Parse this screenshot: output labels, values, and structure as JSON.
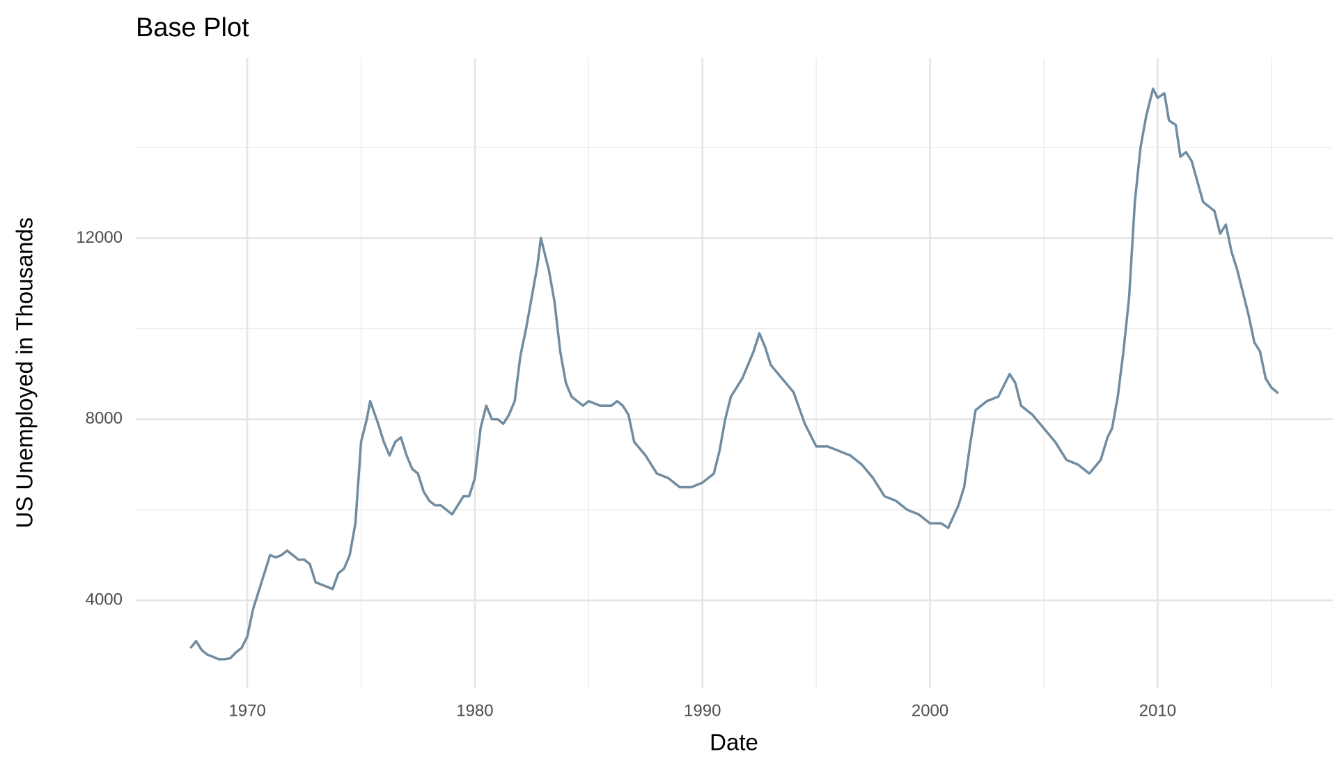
{
  "chart_data": {
    "type": "line",
    "title": "Base Plot",
    "x_label": "Date",
    "y_label": "US Unemployed in Thousands",
    "x": [
      1967.5,
      1967.75,
      1968,
      1968.25,
      1968.5,
      1968.75,
      1969,
      1969.25,
      1969.5,
      1969.75,
      1970,
      1970.25,
      1970.5,
      1970.75,
      1971,
      1971.25,
      1971.5,
      1971.75,
      1972,
      1972.25,
      1972.5,
      1972.75,
      1973,
      1973.25,
      1973.5,
      1973.75,
      1974,
      1974.25,
      1974.5,
      1974.75,
      1975,
      1975.25,
      1975.4,
      1975.75,
      1976,
      1976.25,
      1976.5,
      1976.75,
      1977,
      1977.25,
      1977.5,
      1977.75,
      1978,
      1978.25,
      1978.5,
      1978.75,
      1979,
      1979.25,
      1979.5,
      1979.75,
      1980,
      1980.25,
      1980.5,
      1980.75,
      1981,
      1981.25,
      1981.5,
      1981.75,
      1982,
      1982.25,
      1982.5,
      1982.75,
      1982.9,
      1983.25,
      1983.5,
      1983.75,
      1984,
      1984.25,
      1984.5,
      1984.75,
      1985,
      1985.5,
      1986,
      1986.25,
      1986.5,
      1986.75,
      1987,
      1987.5,
      1988,
      1988.5,
      1989,
      1989.5,
      1990,
      1990.5,
      1990.75,
      1991,
      1991.25,
      1991.5,
      1991.75,
      1992,
      1992.25,
      1992.5,
      1992.75,
      1993,
      1993.5,
      1994,
      1994.5,
      1995,
      1995.5,
      1996,
      1996.5,
      1997,
      1997.5,
      1998,
      1998.5,
      1999,
      1999.5,
      2000,
      2000.5,
      2000.8,
      2001.25,
      2001.5,
      2001.75,
      2002,
      2002.5,
      2003,
      2003.5,
      2003.75,
      2004,
      2004.5,
      2005,
      2005.5,
      2006,
      2006.5,
      2007,
      2007.5,
      2007.8,
      2008,
      2008.25,
      2008.5,
      2008.75,
      2009,
      2009.25,
      2009.5,
      2009.8,
      2010,
      2010.3,
      2010.5,
      2010.8,
      2011,
      2011.25,
      2011.5,
      2012,
      2012.5,
      2012.75,
      2013,
      2013.25,
      2013.5,
      2013.75,
      2014,
      2014.25,
      2014.5,
      2014.75,
      2015,
      2015.3
    ],
    "series": [
      {
        "color": "#6f8ca1",
        "values": [
          2944,
          3100,
          2900,
          2800,
          2750,
          2700,
          2700,
          2720,
          2850,
          2950,
          3200,
          3800,
          4200,
          4600,
          5000,
          4950,
          5000,
          5100,
          5000,
          4900,
          4900,
          4800,
          4400,
          4350,
          4300,
          4250,
          4600,
          4700,
          5000,
          5700,
          7500,
          8000,
          8400,
          7900,
          7500,
          7200,
          7500,
          7600,
          7200,
          6900,
          6800,
          6400,
          6200,
          6100,
          6100,
          6000,
          5900,
          6100,
          6300,
          6300,
          6700,
          7800,
          8300,
          8000,
          8000,
          7900,
          8100,
          8400,
          9400,
          10000,
          10700,
          11400,
          12000,
          11300,
          10600,
          9500,
          8800,
          8500,
          8400,
          8300,
          8400,
          8300,
          8300,
          8400,
          8300,
          8100,
          7500,
          7200,
          6800,
          6700,
          6500,
          6500,
          6600,
          6800,
          7300,
          8000,
          8500,
          8700,
          8900,
          9200,
          9500,
          9900,
          9600,
          9200,
          8900,
          8600,
          7900,
          7400,
          7400,
          7300,
          7200,
          7000,
          6700,
          6300,
          6200,
          6000,
          5900,
          5700,
          5700,
          5600,
          6100,
          6500,
          7400,
          8200,
          8400,
          8500,
          9000,
          8800,
          8300,
          8100,
          7800,
          7500,
          7100,
          7000,
          6800,
          7100,
          7600,
          7800,
          8500,
          9500,
          10700,
          12800,
          14000,
          14700,
          15300,
          15100,
          15200,
          14600,
          14500,
          13800,
          13900,
          13700,
          12800,
          12600,
          12100,
          12300,
          11700,
          11300,
          10800,
          10300,
          9700,
          9500,
          8900,
          8700,
          8575
        ]
      }
    ],
    "xlim": [
      1965.1,
      2017.7
    ],
    "xticks": [
      1970,
      1980,
      1990,
      2000,
      2010
    ],
    "minor_xticks": [
      1975,
      1985,
      1995,
      2005,
      2015
    ],
    "ylim": [
      2052,
      15985
    ],
    "yticks": [
      4000,
      8000,
      12000
    ],
    "minor_yticks": [
      6000,
      10000,
      14000
    ],
    "grid": true
  }
}
